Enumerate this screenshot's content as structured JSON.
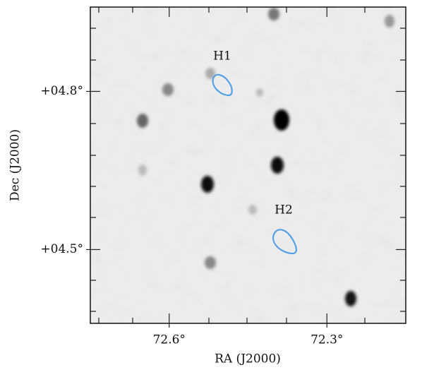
{
  "chart_data": {
    "type": "image",
    "x_label": "RA (J2000)",
    "y_label": "Dec (J2000)",
    "xlim": [
      72.75,
      72.15
    ],
    "ylim": [
      4.36,
      4.96
    ],
    "xticks": [
      {
        "value": 72.6,
        "label": "72.6°"
      },
      {
        "value": 72.3,
        "label": "72.3°"
      }
    ],
    "yticks": [
      {
        "value": 4.5,
        "label": "+04.5°"
      },
      {
        "value": 4.8,
        "label": "+04.8°"
      }
    ],
    "annotations": [
      "H1",
      "H2"
    ],
    "contour_color": "#4a9be8"
  }
}
